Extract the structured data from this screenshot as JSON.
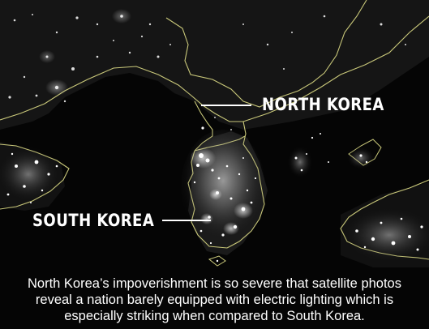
{
  "labels": {
    "north": "NORTH KOREA",
    "south": "SOUTH KOREA"
  },
  "caption": "North Korea’s impoverishment is so severe that satellite photos reveal a nation barely equipped with electric lighting which is especially striking when compared to South Korea.",
  "colors": {
    "background": "#000000",
    "border_lines": "#c9c87a",
    "city_lights": "#ffffff",
    "text": "#ffffff"
  }
}
